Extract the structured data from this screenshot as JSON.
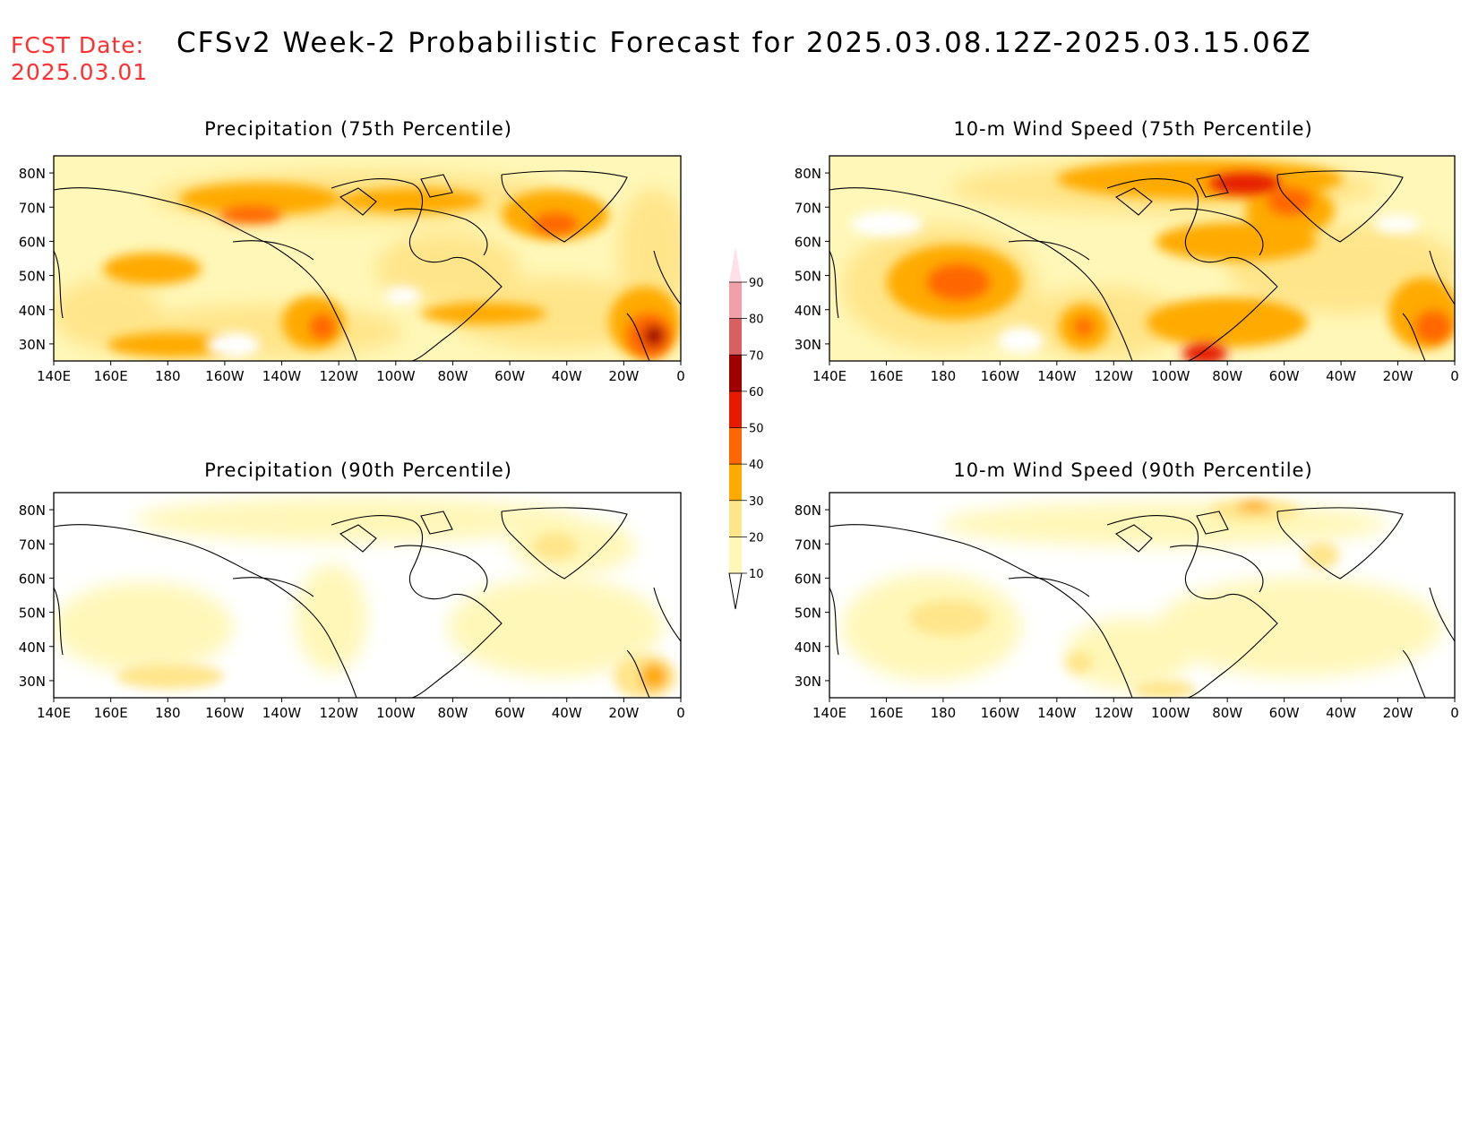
{
  "header": {
    "fcst_label": "FCST Date:",
    "fcst_date": "2025.03.01",
    "title": "CFSv2 Week-2 Probabilistic Forecast for 2025.03.08.12Z-2025.03.15.06Z"
  },
  "panels": [
    {
      "title": "Precipitation (75th Percentile)"
    },
    {
      "title": "10-m Wind Speed (75th Percentile)"
    },
    {
      "title": "Precipitation (90th Percentile)"
    },
    {
      "title": "10-m Wind Speed (90th Percentile)"
    }
  ],
  "axes": {
    "lon_ticks": [
      "140E",
      "160E",
      "180",
      "160W",
      "140W",
      "120W",
      "100W",
      "80W",
      "60W",
      "40W",
      "20W",
      "0"
    ],
    "lat_ticks": [
      "80N",
      "70N",
      "60N",
      "50N",
      "40N",
      "30N"
    ]
  },
  "colorbar": {
    "levels": [
      "10",
      "20",
      "30",
      "40",
      "50",
      "60",
      "70",
      "80",
      "90"
    ],
    "colors": [
      "#fff7b8",
      "#ffe58a",
      "#ffaa00",
      "#ff6600",
      "#e61a00",
      "#a00000",
      "#d96060",
      "#f0a0a8",
      "#ffe0e8"
    ]
  },
  "map_data": {
    "type": "probability-contour-map",
    "units": "percent probability",
    "lon_range": [
      "140E",
      "0"
    ],
    "lat_range": [
      "25N",
      "85N"
    ]
  }
}
